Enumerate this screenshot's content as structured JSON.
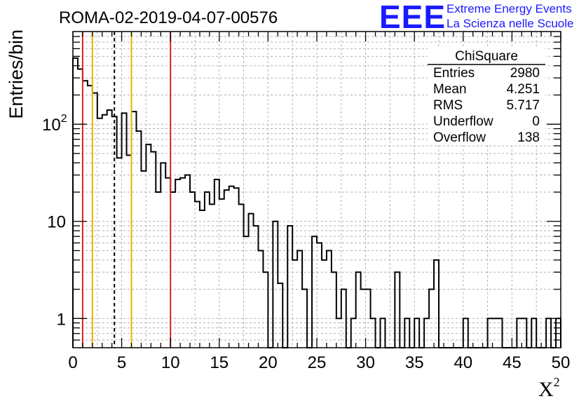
{
  "logo": {
    "text": "EEE",
    "line1": "Extreme Energy Events",
    "line2": "La Scienza nelle Scuole",
    "color": "#1a1aff"
  },
  "stats": {
    "title": "ChiSquare",
    "rows": [
      {
        "label": "Entries",
        "value": "2980"
      },
      {
        "label": "Mean",
        "value": "4.251"
      },
      {
        "label": "RMS",
        "value": "5.717"
      },
      {
        "label": "Underflow",
        "value": "0"
      },
      {
        "label": "Overflow",
        "value": "138"
      }
    ]
  },
  "chart_data": {
    "type": "histogram",
    "title": "ROMA-02-2019-04-07-00576",
    "xlabel": "X",
    "xlabel_sup": "2",
    "ylabel": "Entries/bin",
    "xlim": [
      0,
      50
    ],
    "ylim": [
      0.5,
      900
    ],
    "yscale": "log",
    "grid": true,
    "bin_width": 0.5,
    "x_ticks": [
      0,
      5,
      10,
      15,
      20,
      25,
      30,
      35,
      40,
      45,
      50
    ],
    "y_ticks": [
      {
        "value": 1,
        "label": "1"
      },
      {
        "value": 10,
        "label": "10"
      },
      {
        "value": 100,
        "label": "10",
        "sup": "2"
      }
    ],
    "values": [
      480,
      370,
      280,
      250,
      210,
      115,
      125,
      140,
      120,
      45,
      130,
      48,
      135,
      85,
      33,
      62,
      52,
      20,
      40,
      28,
      20,
      27,
      28,
      30,
      20,
      16,
      13,
      20,
      15,
      27,
      17,
      21,
      23,
      22,
      15,
      7,
      12,
      9,
      5,
      3,
      0,
      10,
      2.3,
      0,
      9,
      4,
      5,
      2,
      0,
      7,
      6,
      4,
      5,
      3,
      1,
      2,
      0,
      1,
      3,
      2,
      2,
      1,
      0.5,
      1,
      0,
      0,
      3,
      0,
      1,
      0,
      1,
      0,
      1,
      2,
      4,
      0,
      0,
      0,
      0,
      0,
      1,
      0,
      0,
      0,
      0,
      1,
      1,
      1,
      0,
      0,
      0,
      1,
      1,
      0,
      1,
      0,
      0,
      1,
      0,
      1
    ],
    "vlines": [
      {
        "x": 1.0,
        "color": "#dd2222",
        "style": "solid"
      },
      {
        "x": 2.0,
        "color": "#f0b000",
        "style": "solid"
      },
      {
        "x": 4.251,
        "color": "#000000",
        "style": "dashed"
      },
      {
        "x": 6.0,
        "color": "#f0b000",
        "style": "solid"
      },
      {
        "x": 10.0,
        "color": "#dd2222",
        "style": "solid"
      }
    ]
  }
}
